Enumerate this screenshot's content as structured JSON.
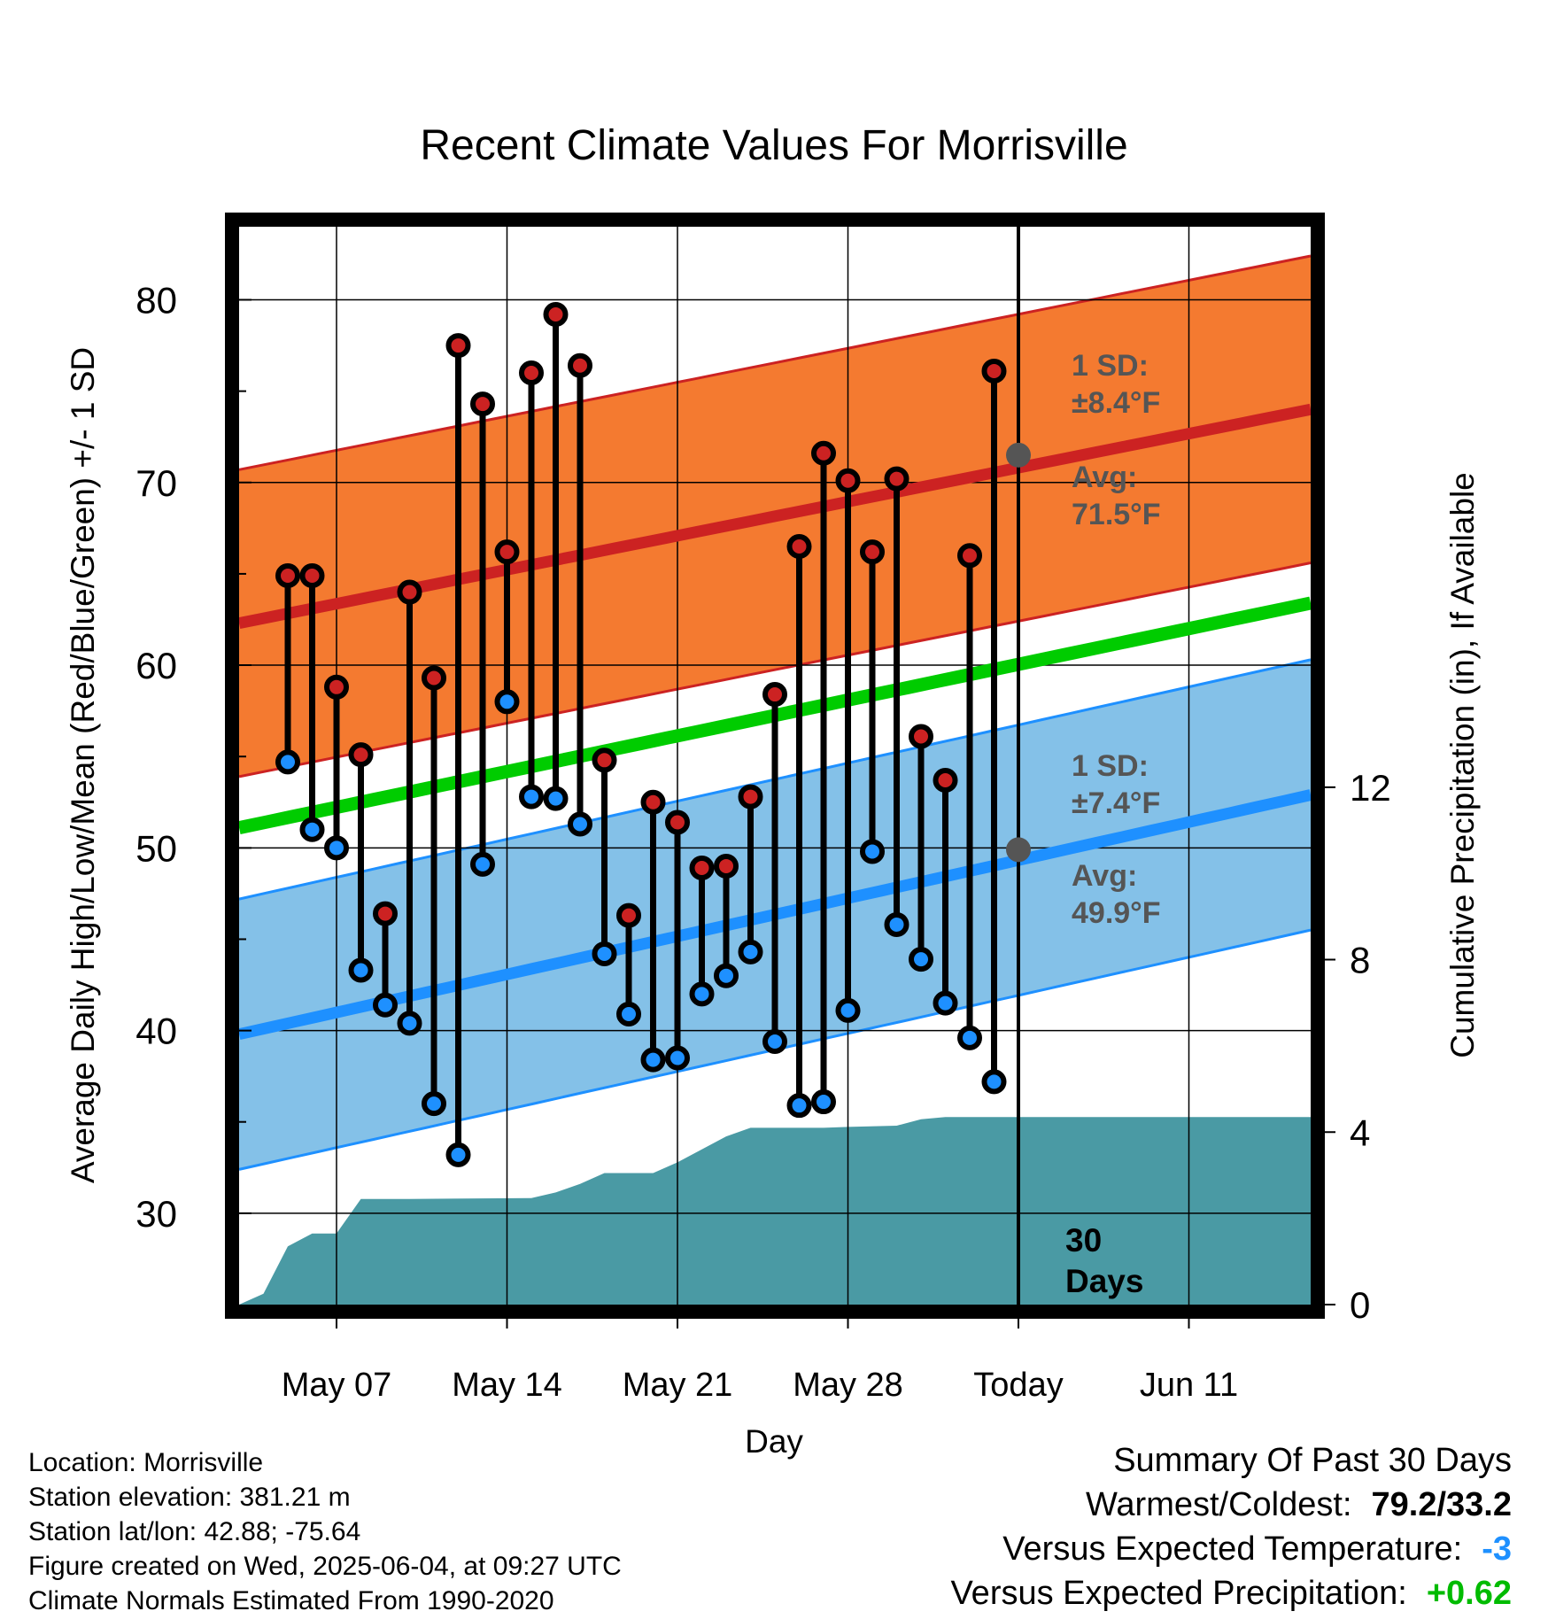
{
  "chart_data": {
    "type": "line",
    "title": "Recent Climate Values For Morrisville",
    "xlabel": "Day",
    "ylabel_left": "Average Daily High/Low/Mean (Red/Blue/Green) +/- 1 SD",
    "ylabel_right": "Cumulative Precipitation (in), If Available",
    "ylim_left": [
      25,
      84
    ],
    "ylim_right": [
      0,
      25
    ],
    "xlim_days": [
      "2025-05-03",
      "2025-06-16"
    ],
    "grid": true,
    "y_ticks_left": [
      30,
      40,
      50,
      60,
      70,
      80
    ],
    "y_ticks_right": [
      0,
      4,
      8,
      12
    ],
    "x_ticks": [
      {
        "date": "2025-05-07",
        "label": "May 07"
      },
      {
        "date": "2025-05-14",
        "label": "May 14"
      },
      {
        "date": "2025-05-21",
        "label": "May 21"
      },
      {
        "date": "2025-05-28",
        "label": "May 28"
      },
      {
        "date": "2025-06-04",
        "label": "Today"
      },
      {
        "date": "2025-06-11",
        "label": "Jun 11"
      }
    ],
    "today": "2025-06-04",
    "dates": [
      "2025-05-05",
      "2025-05-06",
      "2025-05-07",
      "2025-05-08",
      "2025-05-09",
      "2025-05-10",
      "2025-05-11",
      "2025-05-12",
      "2025-05-13",
      "2025-05-14",
      "2025-05-15",
      "2025-05-16",
      "2025-05-17",
      "2025-05-18",
      "2025-05-19",
      "2025-05-20",
      "2025-05-21",
      "2025-05-22",
      "2025-05-23",
      "2025-05-24",
      "2025-05-25",
      "2025-05-26",
      "2025-05-27",
      "2025-05-28",
      "2025-05-29",
      "2025-05-30",
      "2025-05-31",
      "2025-06-01",
      "2025-06-02",
      "2025-06-03"
    ],
    "daily_high": [
      64.9,
      64.9,
      58.8,
      55.1,
      46.4,
      64.0,
      59.3,
      77.5,
      74.3,
      66.2,
      76.0,
      79.2,
      76.4,
      54.8,
      46.3,
      52.5,
      51.4,
      48.9,
      49.0,
      52.8,
      58.4,
      66.5,
      71.6,
      70.1,
      66.2,
      70.2,
      56.1,
      53.7,
      66.0,
      76.1
    ],
    "daily_low": [
      54.7,
      51.0,
      50.0,
      43.3,
      41.4,
      40.4,
      36.0,
      33.2,
      49.1,
      58.0,
      52.8,
      52.7,
      51.3,
      44.2,
      40.9,
      38.4,
      38.5,
      42.0,
      43.0,
      44.3,
      39.4,
      35.9,
      36.1,
      41.1,
      49.8,
      45.8,
      43.9,
      41.5,
      39.6,
      37.2
    ],
    "normals": {
      "dates": [
        "2025-05-03",
        "2025-06-16"
      ],
      "avg_high": [
        62.3,
        74.0
      ],
      "avg_high_sd": 8.4,
      "avg_low": [
        39.8,
        52.9
      ],
      "avg_low_sd": 7.4,
      "avg_mean": [
        51.1,
        63.4
      ]
    },
    "precip_cumulative": {
      "dates": [
        "2025-05-03",
        "2025-05-04",
        "2025-05-05",
        "2025-05-06",
        "2025-05-07",
        "2025-05-08",
        "2025-05-09",
        "2025-05-10",
        "2025-05-15",
        "2025-05-16",
        "2025-05-17",
        "2025-05-18",
        "2025-05-20",
        "2025-05-21",
        "2025-05-22",
        "2025-05-23",
        "2025-05-24",
        "2025-05-27",
        "2025-05-28",
        "2025-05-30",
        "2025-05-31",
        "2025-06-01",
        "2025-06-04",
        "2025-06-16"
      ],
      "values": [
        0.0,
        0.25,
        1.35,
        1.65,
        1.65,
        2.45,
        2.45,
        2.45,
        2.47,
        2.6,
        2.8,
        3.05,
        3.05,
        3.3,
        3.6,
        3.9,
        4.1,
        4.1,
        4.12,
        4.15,
        4.3,
        4.35,
        4.35,
        4.35
      ]
    },
    "annotations": {
      "high_sd_label": "1 SD:",
      "high_sd_value": "±8.4°F",
      "high_avg_label": "Avg:",
      "high_avg_value": "71.5°F",
      "low_sd_label": "1 SD:",
      "low_sd_value": "±7.4°F",
      "low_avg_label": "Avg:",
      "low_avg_value": "49.9°F",
      "today_high_avg": 71.5,
      "today_low_avg": 49.9,
      "days_number": "30",
      "days_word": "Days"
    },
    "colors": {
      "high_band": "#f47a30",
      "high_line": "#cc2222",
      "low_band": "#84c1e8",
      "low_line": "#1e90ff",
      "mean_line": "#00cc00",
      "precip_fill": "#4a9aa4",
      "high_dot": "#cc2222",
      "low_dot": "#1e90ff",
      "annotation": "#555555"
    }
  },
  "info": {
    "location": "Location: Morrisville",
    "elevation": "Station elevation: 381.21 m",
    "latlon": "Station lat/lon: 42.88; -75.64",
    "created": "Figure created on Wed, 2025-06-04, at 09:27 UTC",
    "normals": "Climate Normals Estimated From 1990-2020"
  },
  "summary": {
    "title": "Summary Of Past 30 Days",
    "warm_cold_label": "Warmest/Coldest:",
    "warm_cold_value": "79.2/33.2",
    "temp_label": "Versus Expected Temperature:",
    "temp_value": "-3",
    "temp_color": "#1e90ff",
    "precip_label": "Versus Expected Precipitation:",
    "precip_value": "+0.62",
    "precip_color": "#00bb00"
  }
}
